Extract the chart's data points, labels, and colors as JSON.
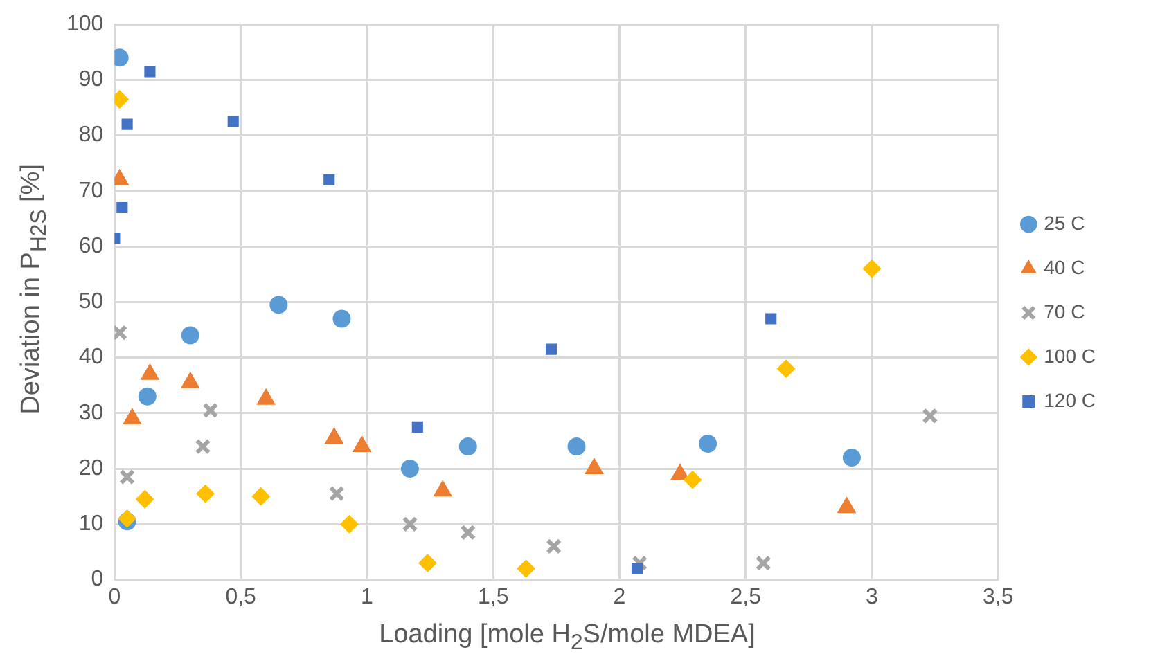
{
  "chart_data": {
    "type": "scatter",
    "xlabel": "Loading [mole H$_{2}$S/mole MDEA]",
    "ylabel": "Deviation in P$_{H2S}$ [%]",
    "xlim": [
      0,
      3.5
    ],
    "xticks": [
      0,
      {
        "value": 0.5,
        "label": "0,5"
      },
      1,
      {
        "value": 1.5,
        "label": "1,5"
      },
      2,
      {
        "value": 2.5,
        "label": "2,5"
      },
      3,
      {
        "value": 3.5,
        "label": "3,5"
      }
    ],
    "ylim": [
      0,
      100
    ],
    "yticks": [
      0,
      10,
      20,
      30,
      40,
      50,
      60,
      70,
      80,
      90,
      100
    ],
    "grid": true,
    "legend": "right",
    "series": [
      {
        "name": "25 C",
        "color": "#5b9bd5",
        "marker": "circle",
        "x": [
          0.02,
          0.05,
          0.13,
          0.3,
          0.65,
          0.9,
          1.17,
          1.4,
          1.83,
          2.35,
          2.92
        ],
        "values": [
          94,
          10.5,
          33,
          44,
          49.5,
          47,
          20,
          24,
          24,
          24.5,
          22
        ]
      },
      {
        "name": "40 C",
        "color": "#ed7d31",
        "marker": "triangle",
        "x": [
          0.02,
          0.07,
          0.14,
          0.3,
          0.6,
          0.87,
          0.98,
          1.3,
          1.9,
          2.24,
          2.9
        ],
        "values": [
          72,
          29,
          37,
          35.5,
          32.5,
          25.5,
          24,
          16,
          20,
          19,
          13
        ]
      },
      {
        "name": "70 C",
        "color": "#a5a5a5",
        "marker": "cross",
        "x": [
          0.02,
          0.05,
          0.35,
          0.38,
          0.88,
          1.17,
          1.4,
          1.74,
          2.08,
          2.57,
          3.23
        ],
        "values": [
          44.5,
          18.5,
          24,
          30.5,
          15.5,
          10,
          8.5,
          6,
          3,
          3,
          29.5
        ]
      },
      {
        "name": "100 C",
        "color": "#ffc000",
        "marker": "diamond",
        "x": [
          0.02,
          0.05,
          0.12,
          0.36,
          0.58,
          0.93,
          1.24,
          1.63,
          2.29,
          2.66,
          3.0
        ],
        "values": [
          86.5,
          11,
          14.5,
          15.5,
          15,
          10,
          3,
          2,
          18,
          38,
          56
        ]
      },
      {
        "name": "120 C",
        "color": "#4472c4",
        "marker": "square",
        "x": [
          0,
          0.03,
          0.05,
          0.14,
          0.47,
          0.85,
          1.2,
          1.73,
          2.07,
          2.6
        ],
        "values": [
          61.5,
          67,
          82,
          91.5,
          82.5,
          72,
          27.5,
          41.5,
          2,
          47
        ]
      }
    ]
  }
}
